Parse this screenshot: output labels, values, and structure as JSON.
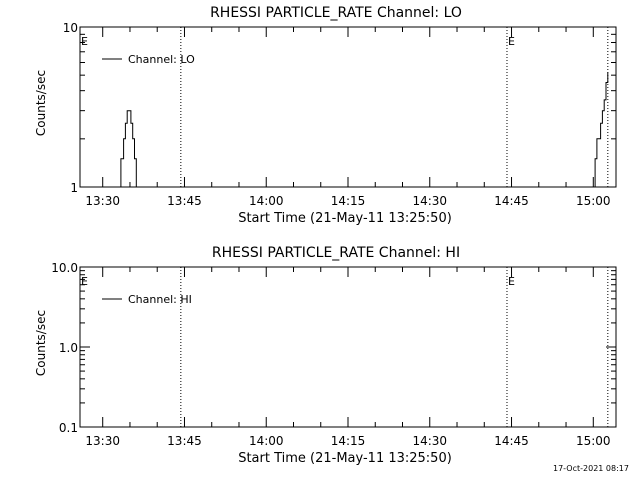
{
  "chart_data": [
    {
      "type": "line",
      "title": "RHESSI PARTICLE_RATE Channel: LO",
      "xlabel": "Start Time (21-May-11 13:25:50)",
      "ylabel": "Counts/sec",
      "yscale": "log",
      "ylim": [
        1,
        10
      ],
      "xlim": [
        "13:25:50",
        "15:04:10"
      ],
      "x_ticks": [
        "13:30",
        "13:45",
        "14:00",
        "14:15",
        "14:30",
        "14:45",
        "15:00"
      ],
      "y_ticks": [
        "1",
        "10"
      ],
      "legend": {
        "label": "Channel: LO",
        "placement": "top-left"
      },
      "series_x": [
        "13:32:50",
        "13:33:20",
        "13:33:50",
        "13:34:10",
        "13:34:30",
        "13:34:50",
        "13:35:10",
        "13:35:30",
        "13:35:50",
        "13:36:10",
        "15:00:00",
        "15:00:20",
        "15:00:40",
        "15:01:00",
        "15:01:20",
        "15:01:40",
        "15:02:00",
        "15:02:20",
        "15:02:40"
      ],
      "series_y": [
        1,
        1.5,
        2,
        2.5,
        3,
        3,
        2.5,
        2,
        1.5,
        1,
        1,
        1.5,
        2,
        2,
        2.5,
        3,
        3.5,
        4.5,
        5.2
      ],
      "markers": [
        {
          "x": "13:25:50",
          "label": "E"
        },
        {
          "x": "14:44:10",
          "label": "E"
        }
      ],
      "dotted_lines": [
        "13:44:20",
        "14:44:10",
        "15:02:40"
      ]
    },
    {
      "type": "line",
      "title": "RHESSI PARTICLE_RATE Channel: HI",
      "xlabel": "Start Time (21-May-11 13:25:50)",
      "ylabel": "Counts/sec",
      "yscale": "log",
      "ylim": [
        0.1,
        10
      ],
      "xlim": [
        "13:25:50",
        "15:04:10"
      ],
      "x_ticks": [
        "13:30",
        "13:45",
        "14:00",
        "14:15",
        "14:30",
        "14:45",
        "15:00"
      ],
      "y_ticks": [
        "0.1",
        "1.0",
        "10.0"
      ],
      "legend": {
        "label": "Channel: HI",
        "placement": "top-left"
      },
      "markers": [
        {
          "x": "13:25:50",
          "label": "E"
        },
        {
          "x": "14:44:10",
          "label": "E"
        }
      ],
      "dotted_lines": [
        "13:44:20",
        "14:44:10",
        "15:02:40"
      ]
    }
  ],
  "footer": {
    "timestamp": "17-Oct-2021 08:17"
  }
}
